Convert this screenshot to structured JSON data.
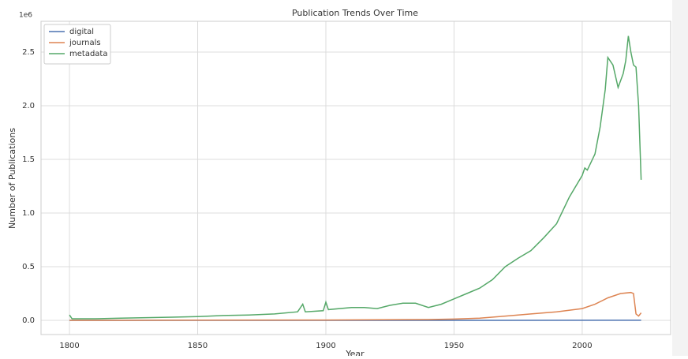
{
  "chart_data": {
    "type": "line",
    "title": "Publication Trends Over Time",
    "xlabel": "Year",
    "ylabel": "Number of Publications",
    "y_offset_label": "1e6",
    "xlim": [
      1788.9,
      2034.5
    ],
    "xticks": [
      1800,
      1850,
      1900,
      1950,
      2000
    ],
    "ylim": [
      -0.132,
      2.787
    ],
    "yticks": [
      {
        "value": 0,
        "label": "0.0"
      },
      0.5,
      {
        "value": 1,
        "label": "1.0"
      },
      1.5,
      {
        "value": 2,
        "label": "2.0"
      },
      2.5
    ],
    "grid": true,
    "legend": "upper left",
    "series": [
      {
        "name": "digital",
        "color": "#4c72b0",
        "x": [
          1800,
          1950,
          2023
        ],
        "values": [
          0,
          0,
          0.001
        ]
      },
      {
        "name": "journals",
        "color": "#dd8452",
        "x": [
          1800,
          1900,
          1940,
          1950,
          1960,
          1970,
          1980,
          1990,
          2000,
          2005,
          2010,
          2015,
          2019,
          2020,
          2021,
          2022,
          2023
        ],
        "values": [
          0,
          0.003,
          0.008,
          0.012,
          0.02,
          0.04,
          0.06,
          0.08,
          0.11,
          0.15,
          0.21,
          0.25,
          0.26,
          0.25,
          0.06,
          0.04,
          0.07
        ]
      },
      {
        "name": "metadata",
        "color": "#55a868",
        "x": [
          1800,
          1801,
          1810,
          1820,
          1830,
          1840,
          1850,
          1860,
          1870,
          1880,
          1889,
          1891,
          1892,
          1899,
          1900,
          1901,
          1910,
          1915,
          1920,
          1925,
          1930,
          1935,
          1940,
          1945,
          1950,
          1955,
          1960,
          1965,
          1970,
          1975,
          1980,
          1985,
          1990,
          1995,
          2000,
          2001,
          2002,
          2005,
          2007,
          2009,
          2010,
          2012,
          2014,
          2016,
          2017,
          2018,
          2019,
          2020,
          2021,
          2022,
          2023
        ],
        "values": [
          0.05,
          0.015,
          0.015,
          0.02,
          0.025,
          0.03,
          0.035,
          0.045,
          0.05,
          0.06,
          0.08,
          0.15,
          0.08,
          0.09,
          0.17,
          0.1,
          0.12,
          0.12,
          0.11,
          0.14,
          0.16,
          0.16,
          0.12,
          0.15,
          0.2,
          0.25,
          0.3,
          0.38,
          0.5,
          0.58,
          0.65,
          0.77,
          0.9,
          1.15,
          1.35,
          1.42,
          1.4,
          1.55,
          1.8,
          2.15,
          2.45,
          2.38,
          2.17,
          2.3,
          2.42,
          2.65,
          2.5,
          2.38,
          2.36,
          2.0,
          1.31
        ]
      }
    ]
  }
}
